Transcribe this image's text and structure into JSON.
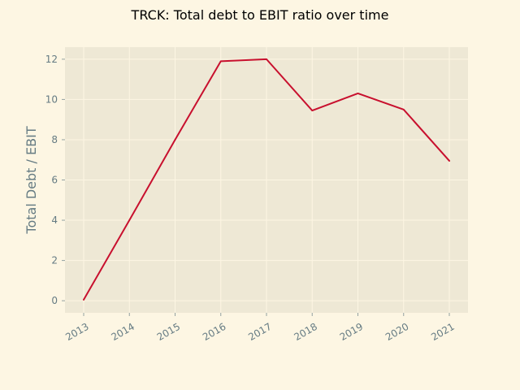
{
  "colors": {
    "figure_bg": "#fdf6e3",
    "plot_bg": "#eee8d5",
    "grid": "#fdf6e3",
    "line": "#c8102e",
    "text": "#657b83"
  },
  "chart_data": {
    "type": "line",
    "title": "TRCK: Total debt to EBIT ratio over time",
    "xlabel": "",
    "ylabel": "Total Debt / EBIT",
    "categories": [
      "2013",
      "2014",
      "2015",
      "2016",
      "2017",
      "2018",
      "2019",
      "2020",
      "2021"
    ],
    "series": [
      {
        "name": "Total Debt / EBIT",
        "values": [
          0.05,
          4.0,
          8.0,
          11.9,
          12.0,
          9.45,
          10.3,
          9.5,
          6.95
        ]
      }
    ],
    "yticks": [
      0,
      2,
      4,
      6,
      8,
      10,
      12
    ],
    "ytick_labels": [
      "0",
      "2",
      "4",
      "6",
      "8",
      "10",
      "12"
    ],
    "ylim": [
      -0.6,
      12.6
    ],
    "grid": true,
    "legend": "none"
  }
}
